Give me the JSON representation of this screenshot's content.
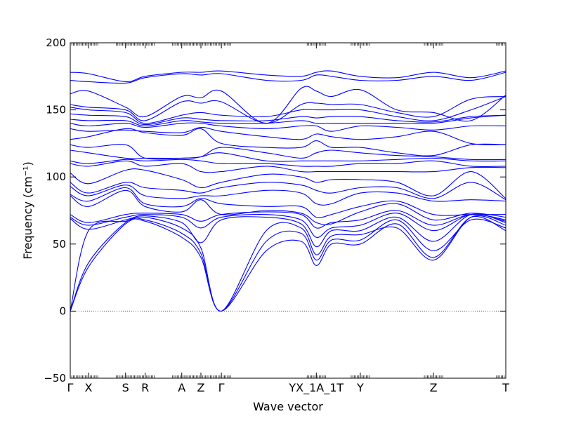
{
  "chart_data": {
    "type": "line",
    "title": "",
    "xlabel": "Wave vector",
    "ylabel": "Frequency (cm⁻¹)",
    "ylim": [
      -50,
      200
    ],
    "yticks": [
      -50,
      0,
      50,
      100,
      150,
      200
    ],
    "grid": false,
    "legend": "none",
    "line_color": "#0000ff",
    "zero_line_color": "#555555",
    "x_range": [
      0,
      10.0
    ],
    "high_symmetry_points": [
      {
        "label": "Γ",
        "x": 0.0
      },
      {
        "label": "X",
        "x": 0.42
      },
      {
        "label": "S",
        "x": 1.27
      },
      {
        "label": "R",
        "x": 1.72
      },
      {
        "label": "A",
        "x": 2.56
      },
      {
        "label": "Z",
        "x": 3.0
      },
      {
        "label": "Γ",
        "x": 3.47
      },
      {
        "label": "YX_1A_1T",
        "x": 5.65
      },
      {
        "label": "Y",
        "x": 6.66
      },
      {
        "label": "Z",
        "x": 8.34
      },
      {
        "label": "T",
        "x": 10.0
      }
    ],
    "band_samples_x": [
      0,
      0.42,
      1.27,
      1.72,
      2.56,
      3.0,
      3.47,
      4.5,
      5.3,
      5.65,
      6.0,
      6.66,
      7.5,
      8.34,
      9.2,
      10.0
    ],
    "series": [
      {
        "values": [
          0,
          33,
          65,
          67,
          55,
          40,
          0,
          45,
          52,
          34,
          50,
          50,
          65,
          40,
          70,
          60
        ]
      },
      {
        "values": [
          0,
          36,
          66,
          68,
          58,
          43,
          0,
          52,
          58,
          38,
          53,
          53,
          68,
          45,
          68,
          62
        ]
      },
      {
        "values": [
          0,
          60,
          67,
          70,
          62,
          47,
          0,
          60,
          62,
          42,
          56,
          57,
          62,
          38,
          70,
          64
        ]
      },
      {
        "values": [
          69,
          61,
          68,
          71,
          66,
          51,
          68,
          70,
          65,
          48,
          60,
          60,
          70,
          52,
          72,
          66
        ]
      },
      {
        "values": [
          70,
          64,
          70,
          72,
          70,
          62,
          70,
          72,
          68,
          55,
          62,
          64,
          73,
          60,
          72,
          67
        ]
      },
      {
        "values": [
          72,
          66,
          72,
          73,
          72,
          67,
          72,
          74,
          72,
          62,
          66,
          68,
          75,
          64,
          72,
          68
        ]
      },
      {
        "values": [
          86,
          78,
          90,
          78,
          74,
          83,
          72,
          75,
          73,
          66,
          65,
          74,
          80,
          68,
          73,
          70
        ]
      },
      {
        "values": [
          87,
          82,
          92,
          80,
          78,
          84,
          80,
          78,
          78,
          70,
          72,
          78,
          82,
          72,
          72,
          72
        ]
      },
      {
        "values": [
          93,
          86,
          94,
          86,
          84,
          86,
          86,
          90,
          88,
          80,
          80,
          88,
          88,
          82,
          83,
          82
        ]
      },
      {
        "values": [
          96,
          88,
          96,
          92,
          90,
          88,
          92,
          96,
          94,
          90,
          88,
          92,
          92,
          84,
          96,
          83
        ]
      },
      {
        "values": [
          103,
          95,
          105,
          105,
          98,
          92,
          96,
          102,
          100,
          96,
          98,
          98,
          96,
          86,
          104,
          84
        ]
      },
      {
        "values": [
          110,
          108,
          112,
          108,
          110,
          104,
          104,
          108,
          104,
          104,
          104,
          104,
          104,
          104,
          107,
          107
        ]
      },
      {
        "values": [
          112,
          110,
          113,
          112,
          113,
          112,
          110,
          110,
          108,
          108,
          108,
          110,
          110,
          112,
          108,
          108
        ]
      },
      {
        "values": [
          120,
          118,
          114,
          114,
          114,
          115,
          118,
          112,
          112,
          112,
          112,
          112,
          113,
          114,
          112,
          112
        ]
      },
      {
        "values": [
          124,
          122,
          124,
          114,
          114,
          115,
          122,
          118,
          114,
          118,
          120,
          118,
          116,
          115,
          113,
          113
        ]
      },
      {
        "values": [
          128,
          130,
          136,
          133,
          131,
          136,
          125,
          122,
          122,
          127,
          122,
          122,
          118,
          116,
          124,
          124
        ]
      },
      {
        "values": [
          136,
          134,
          135,
          134,
          133,
          137,
          134,
          130,
          128,
          132,
          130,
          128,
          130,
          134,
          125,
          124
        ]
      },
      {
        "values": [
          140,
          138,
          140,
          137,
          140,
          140,
          138,
          136,
          138,
          138,
          134,
          138,
          137,
          135,
          138,
          138
        ]
      },
      {
        "values": [
          143,
          142,
          142,
          138,
          142,
          141,
          140,
          140,
          142,
          140,
          140,
          140,
          140,
          140,
          144,
          146
        ]
      },
      {
        "values": [
          147,
          146,
          145,
          139,
          144,
          143,
          142,
          142,
          145,
          144,
          145,
          145,
          142,
          141,
          145,
          146
        ]
      },
      {
        "values": [
          152,
          150,
          148,
          140,
          146,
          148,
          146,
          145,
          150,
          150,
          150,
          150,
          145,
          142,
          150,
          160
        ]
      },
      {
        "values": [
          154,
          152,
          150,
          142,
          156,
          155,
          156,
          140,
          154,
          155,
          154,
          154,
          148,
          145,
          158,
          160
        ]
      },
      {
        "values": [
          162,
          164,
          152,
          145,
          160,
          159,
          164,
          140,
          166,
          164,
          160,
          165,
          150,
          148,
          142,
          161
        ]
      },
      {
        "values": [
          172,
          171,
          170,
          174,
          177,
          176,
          177,
          172,
          172,
          176,
          175,
          172,
          172,
          175,
          172,
          178
        ]
      },
      {
        "values": [
          178,
          177,
          171,
          175,
          178,
          178,
          179,
          176,
          175,
          178,
          179,
          175,
          174,
          178,
          174,
          179
        ]
      }
    ]
  }
}
